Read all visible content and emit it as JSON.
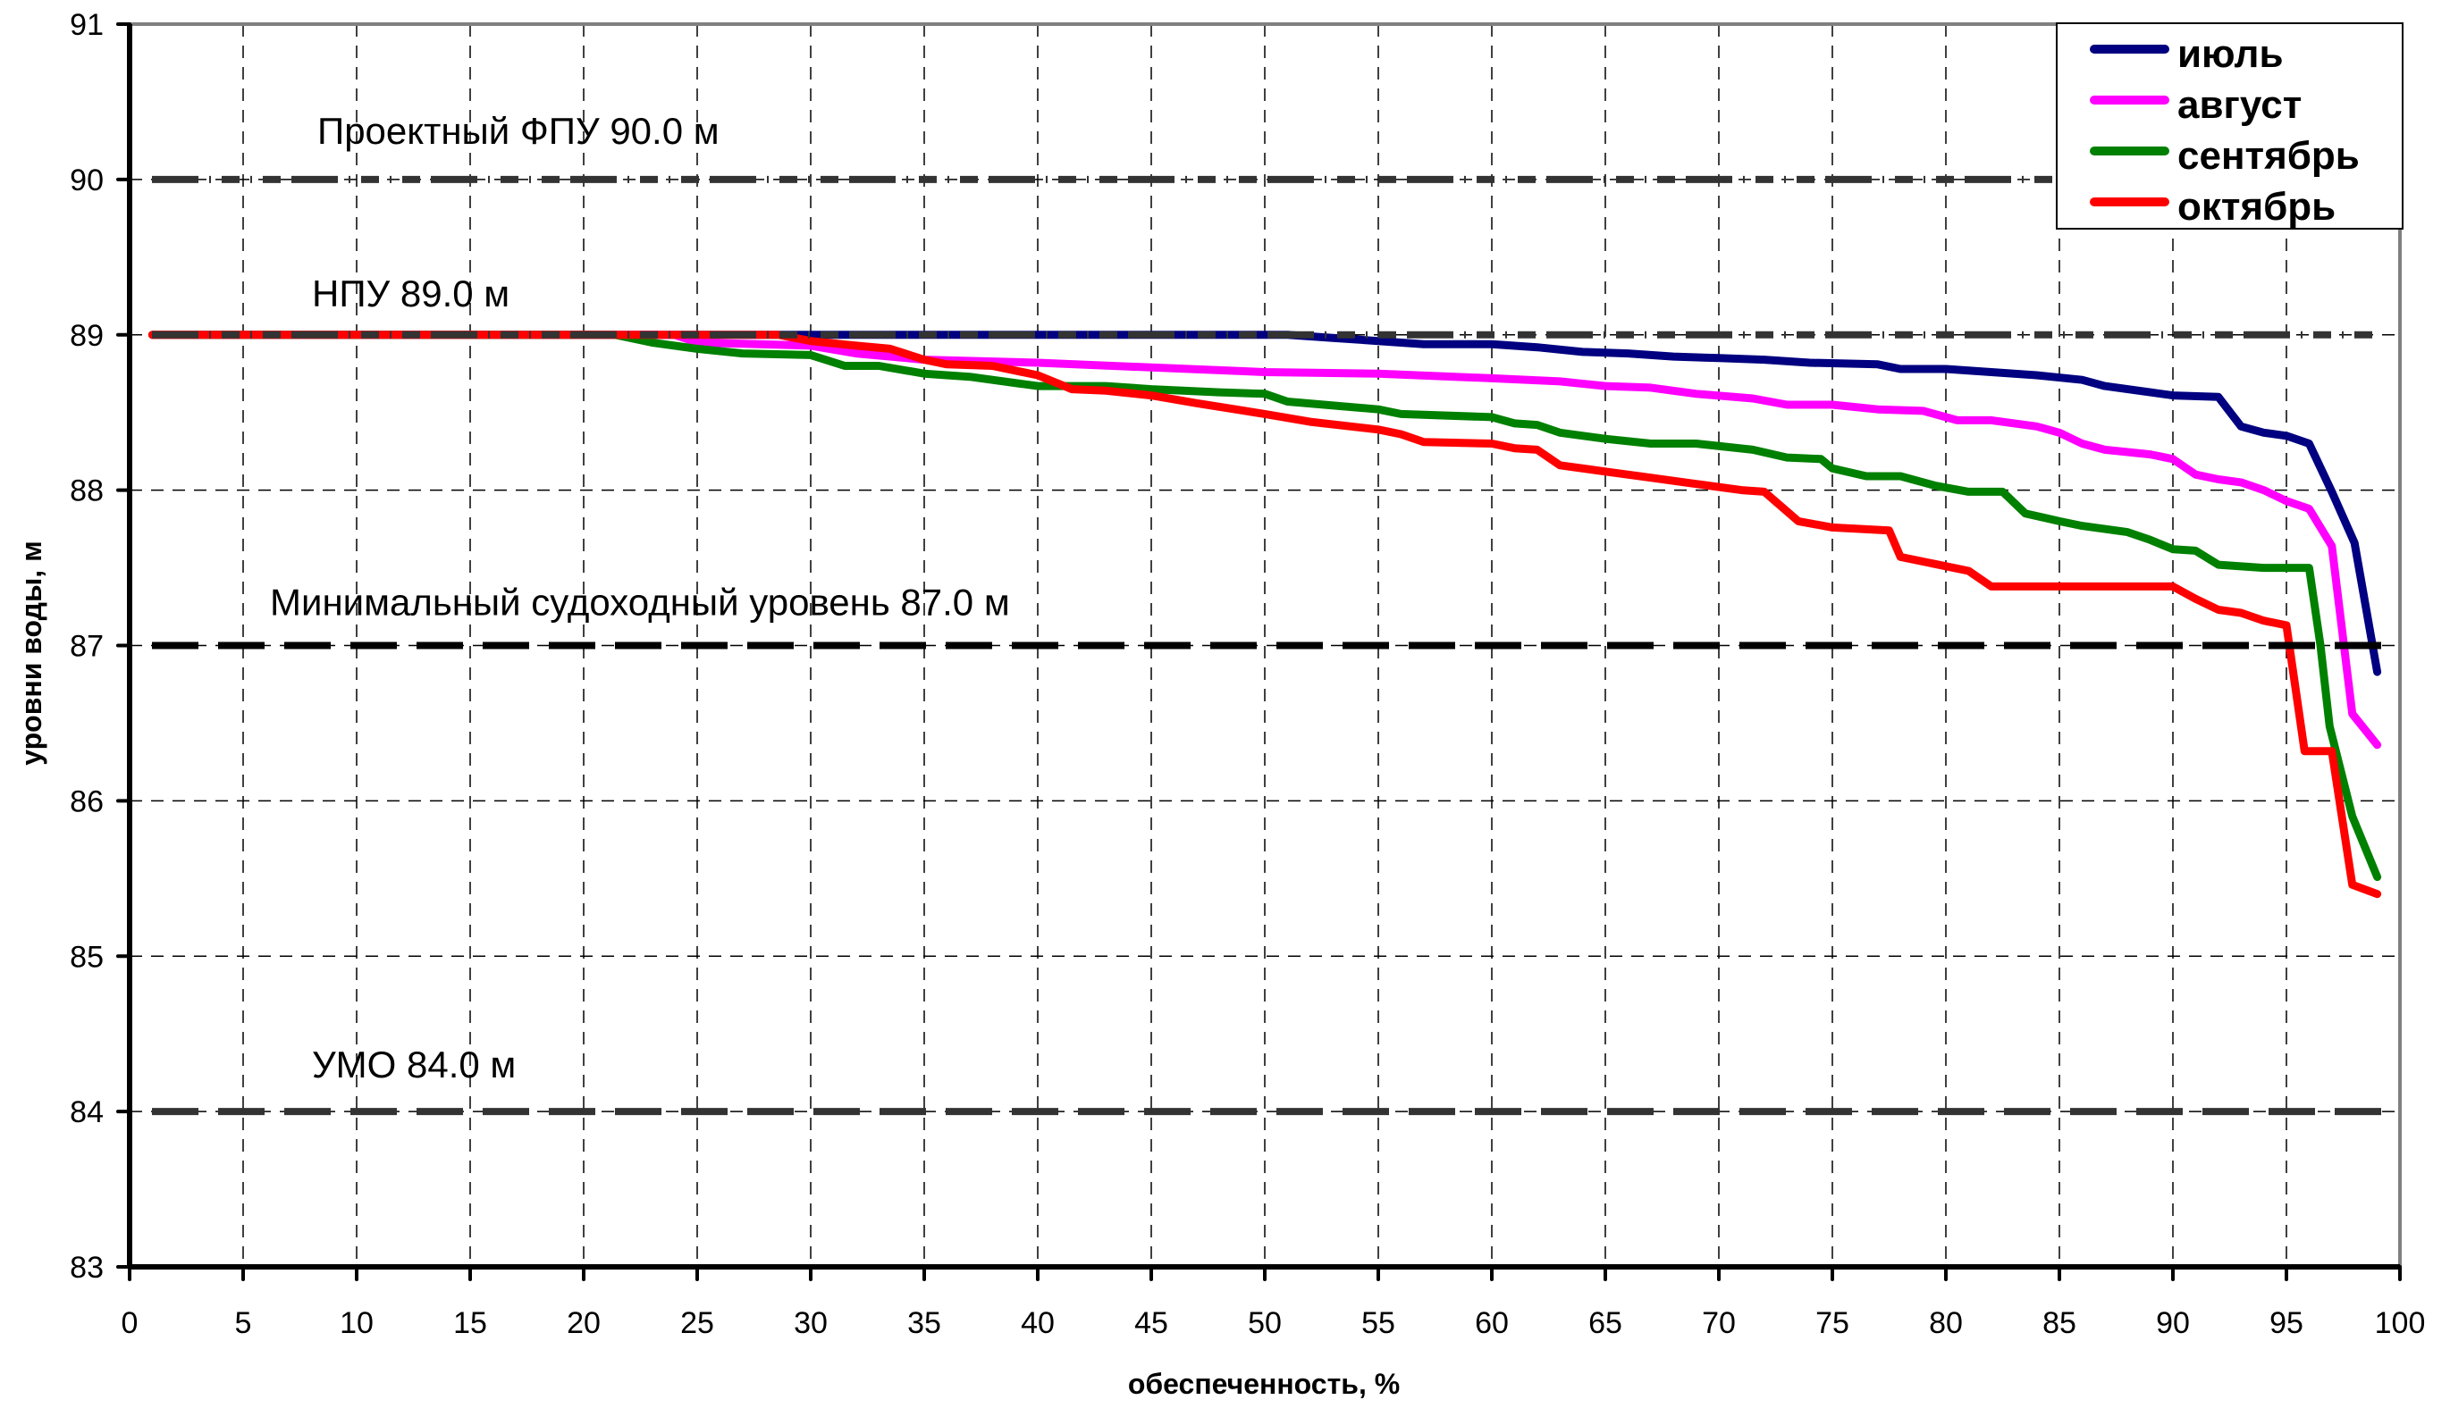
{
  "chart_data": {
    "type": "line",
    "title": "",
    "xlabel": "обеспеченность, %",
    "ylabel": "уровни воды, м",
    "xlim": [
      0,
      100
    ],
    "ylim": [
      83,
      91
    ],
    "x_ticks": [
      "0",
      "5",
      "10",
      "15",
      "20",
      "25",
      "30",
      "35",
      "40",
      "45",
      "50",
      "55",
      "60",
      "65",
      "70",
      "75",
      "80",
      "85",
      "90",
      "95",
      "100"
    ],
    "y_ticks": [
      "83",
      "84",
      "85",
      "86",
      "87",
      "88",
      "89",
      "90",
      "91"
    ],
    "grid": true,
    "legend_position": "top-right",
    "reference_lines": [
      {
        "name": "fpu",
        "value": 90.0,
        "label": "Проектный ФПУ 90.0 м",
        "style": "dash-dot-dot",
        "color": "#333333"
      },
      {
        "name": "npu",
        "value": 89.0,
        "label": "НПУ 89.0 м",
        "style": "dash-dot-dot",
        "color": "#333333"
      },
      {
        "name": "min-navigation",
        "value": 87.0,
        "label": "Минимальный судоходный уровень 87.0 м",
        "style": "long-dash",
        "color": "#000000"
      },
      {
        "name": "umo",
        "value": 84.0,
        "label": "УМО 84.0 м",
        "style": "long-dash",
        "color": "#333333"
      }
    ],
    "series": [
      {
        "name": "июль",
        "color": "#000080",
        "points": [
          [
            1,
            89
          ],
          [
            51,
            89
          ],
          [
            53,
            88.98
          ],
          [
            55,
            88.96
          ],
          [
            57,
            88.94
          ],
          [
            60,
            88.94
          ],
          [
            62,
            88.92
          ],
          [
            64,
            88.89
          ],
          [
            66,
            88.88
          ],
          [
            68,
            88.86
          ],
          [
            70,
            88.85
          ],
          [
            72,
            88.84
          ],
          [
            74,
            88.82
          ],
          [
            77,
            88.81
          ],
          [
            78,
            88.78
          ],
          [
            80,
            88.78
          ],
          [
            82,
            88.76
          ],
          [
            84,
            88.74
          ],
          [
            86,
            88.71
          ],
          [
            87,
            88.67
          ],
          [
            89,
            88.63
          ],
          [
            90,
            88.61
          ],
          [
            92,
            88.6
          ],
          [
            93,
            88.41
          ],
          [
            94,
            88.37
          ],
          [
            95,
            88.35
          ],
          [
            96,
            88.3
          ],
          [
            97,
            87.99
          ],
          [
            98,
            87.66
          ],
          [
            99,
            86.83
          ]
        ]
      },
      {
        "name": "август",
        "color": "#FF00FF",
        "points": [
          [
            1,
            89
          ],
          [
            24,
            89
          ],
          [
            25,
            88.95
          ],
          [
            30,
            88.93
          ],
          [
            32,
            88.88
          ],
          [
            35,
            88.84
          ],
          [
            40,
            88.82
          ],
          [
            45,
            88.79
          ],
          [
            50,
            88.76
          ],
          [
            55,
            88.75
          ],
          [
            60,
            88.72
          ],
          [
            63,
            88.7
          ],
          [
            65,
            88.67
          ],
          [
            67,
            88.66
          ],
          [
            69,
            88.62
          ],
          [
            71.5,
            88.59
          ],
          [
            73,
            88.55
          ],
          [
            75,
            88.55
          ],
          [
            77,
            88.52
          ],
          [
            79,
            88.51
          ],
          [
            80.5,
            88.45
          ],
          [
            82,
            88.45
          ],
          [
            84,
            88.41
          ],
          [
            85,
            88.37
          ],
          [
            86,
            88.3
          ],
          [
            87,
            88.26
          ],
          [
            89,
            88.23
          ],
          [
            90,
            88.2
          ],
          [
            91,
            88.1
          ],
          [
            92,
            88.07
          ],
          [
            93,
            88.05
          ],
          [
            94,
            88.0
          ],
          [
            95,
            87.93
          ],
          [
            96,
            87.88
          ],
          [
            97,
            87.64
          ],
          [
            97.9,
            86.56
          ],
          [
            99,
            86.36
          ]
        ]
      },
      {
        "name": "сентябрь",
        "color": "#008000",
        "points": [
          [
            1,
            89
          ],
          [
            21.4,
            89
          ],
          [
            23,
            88.95
          ],
          [
            25,
            88.91
          ],
          [
            27,
            88.88
          ],
          [
            30,
            88.87
          ],
          [
            31.5,
            88.8
          ],
          [
            33,
            88.8
          ],
          [
            35,
            88.75
          ],
          [
            37,
            88.73
          ],
          [
            40,
            88.67
          ],
          [
            43,
            88.67
          ],
          [
            45,
            88.65
          ],
          [
            48,
            88.63
          ],
          [
            50,
            88.62
          ],
          [
            51,
            88.57
          ],
          [
            55,
            88.52
          ],
          [
            56,
            88.49
          ],
          [
            60,
            88.47
          ],
          [
            61,
            88.43
          ],
          [
            62,
            88.42
          ],
          [
            63,
            88.37
          ],
          [
            65,
            88.33
          ],
          [
            67,
            88.3
          ],
          [
            69,
            88.3
          ],
          [
            71.5,
            88.26
          ],
          [
            73,
            88.21
          ],
          [
            74.5,
            88.2
          ],
          [
            75,
            88.14
          ],
          [
            76.5,
            88.09
          ],
          [
            78,
            88.09
          ],
          [
            79.5,
            88.03
          ],
          [
            81,
            87.99
          ],
          [
            82.5,
            87.99
          ],
          [
            83.5,
            87.85
          ],
          [
            85,
            87.8
          ],
          [
            86,
            87.77
          ],
          [
            88,
            87.73
          ],
          [
            89,
            87.68
          ],
          [
            90,
            87.62
          ],
          [
            91,
            87.61
          ],
          [
            92,
            87.52
          ],
          [
            94,
            87.5
          ],
          [
            96,
            87.5
          ],
          [
            96.5,
            87.0
          ],
          [
            96.9,
            86.48
          ],
          [
            97.9,
            85.9
          ],
          [
            99,
            85.51
          ]
        ]
      },
      {
        "name": "октябрь",
        "color": "#FF0000",
        "points": [
          [
            1,
            89
          ],
          [
            28.6,
            89
          ],
          [
            30,
            88.96
          ],
          [
            32,
            88.93
          ],
          [
            33.5,
            88.91
          ],
          [
            35,
            88.84
          ],
          [
            36,
            88.81
          ],
          [
            38,
            88.8
          ],
          [
            40,
            88.74
          ],
          [
            41.5,
            88.65
          ],
          [
            43,
            88.64
          ],
          [
            45,
            88.61
          ],
          [
            47,
            88.56
          ],
          [
            50,
            88.49
          ],
          [
            52,
            88.44
          ],
          [
            55,
            88.39
          ],
          [
            56,
            88.36
          ],
          [
            57,
            88.31
          ],
          [
            60,
            88.3
          ],
          [
            61,
            88.27
          ],
          [
            62,
            88.26
          ],
          [
            63,
            88.16
          ],
          [
            65,
            88.12
          ],
          [
            67,
            88.08
          ],
          [
            69,
            88.04
          ],
          [
            71,
            88.0
          ],
          [
            72,
            87.99
          ],
          [
            73.5,
            87.8
          ],
          [
            75,
            87.76
          ],
          [
            77.5,
            87.74
          ],
          [
            78,
            87.57
          ],
          [
            80,
            87.51
          ],
          [
            81,
            87.48
          ],
          [
            82,
            87.38
          ],
          [
            90,
            87.38
          ],
          [
            91,
            87.3
          ],
          [
            92,
            87.23
          ],
          [
            93,
            87.21
          ],
          [
            94,
            87.16
          ],
          [
            95,
            87.13
          ],
          [
            95.8,
            86.32
          ],
          [
            97,
            86.32
          ],
          [
            97.9,
            85.46
          ],
          [
            99,
            85.4
          ]
        ]
      }
    ]
  }
}
